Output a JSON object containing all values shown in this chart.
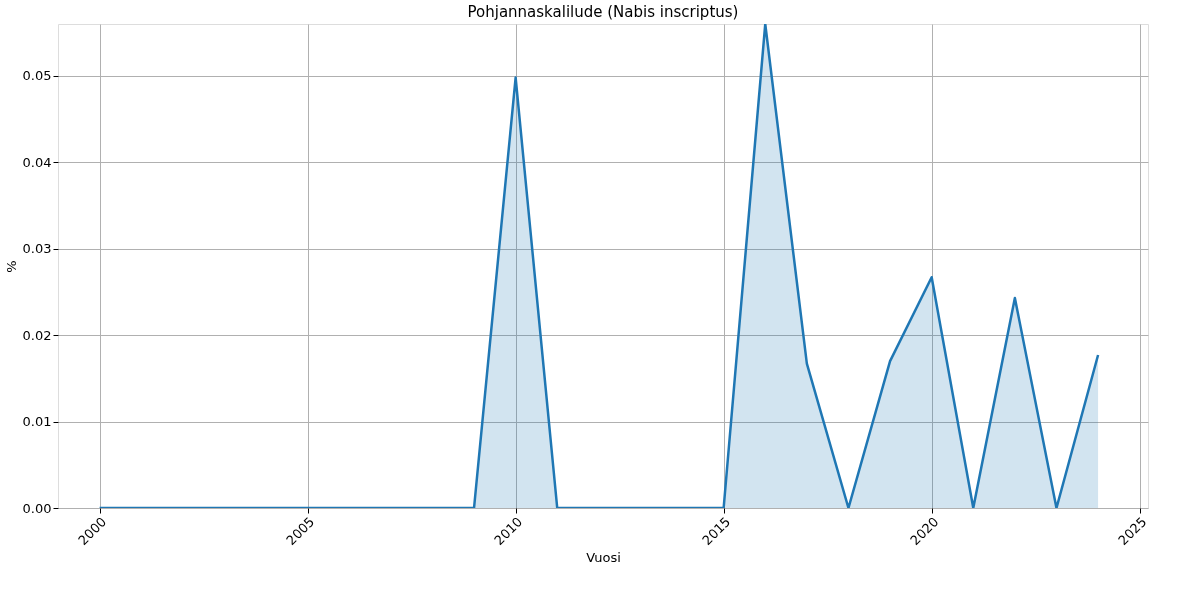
{
  "chart_data": {
    "type": "area",
    "title": "Pohjannaskalilude (Nabis inscriptus)",
    "xlabel": "Vuosi",
    "ylabel": "%",
    "x": [
      2000,
      2001,
      2002,
      2003,
      2004,
      2005,
      2006,
      2007,
      2008,
      2009,
      2010,
      2011,
      2012,
      2013,
      2014,
      2015,
      2016,
      2017,
      2018,
      2019,
      2020,
      2021,
      2022,
      2023,
      2024
    ],
    "series": [
      {
        "color": "#1f77b4",
        "values": [
          0,
          0,
          0,
          0,
          0,
          0,
          0,
          0,
          0,
          0,
          0.0498,
          0,
          0,
          0,
          0,
          0,
          0.056,
          0.0167,
          0,
          0.017,
          0.0267,
          0,
          0.0243,
          0,
          0.0177
        ]
      }
    ],
    "xlim": [
      1999,
      2025.2
    ],
    "xticks": [
      2000,
      2005,
      2010,
      2015,
      2020,
      2025
    ],
    "ylim": [
      0,
      0.056
    ],
    "yticks": [
      {
        "value": 0,
        "label": "0.00"
      },
      {
        "value": 0.01,
        "label": "0.01"
      },
      {
        "value": 0.02,
        "label": "0.02"
      },
      {
        "value": 0.03,
        "label": "0.03"
      },
      {
        "value": 0.04,
        "label": "0.04"
      },
      {
        "value": 0.05,
        "label": "0.05"
      }
    ],
    "grid": true
  }
}
